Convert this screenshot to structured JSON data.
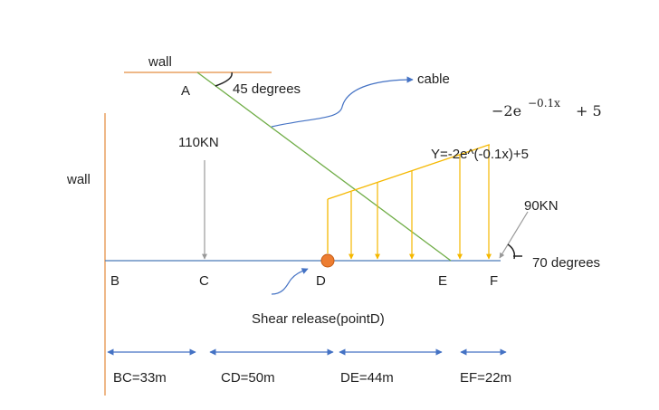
{
  "labels": {
    "wall_top": "wall",
    "wall_left": "wall",
    "point_a": "A",
    "point_b": "B",
    "point_c": "C",
    "point_d": "D",
    "point_e": "E",
    "point_f": "F",
    "angle_a": "45 degrees",
    "angle_f": "70 degrees",
    "cable": "cable",
    "load_c": "110KN",
    "load_f": "90KN",
    "load_eq": "Y=-2e^(-0.1x)+5",
    "shear_release": "Shear release(pointD)",
    "formula_main": "−2e",
    "formula_exp": "−0.1x",
    "formula_tail": "+ 5"
  },
  "dimensions": [
    {
      "label": "BC=33m"
    },
    {
      "label": "CD=50m"
    },
    {
      "label": "DE=44m"
    },
    {
      "label": "EF=22m"
    }
  ],
  "colors": {
    "wall": "#e8a060",
    "beam": "#4a7ab8",
    "cable": "#70ad47",
    "distributed_load": "#f5b800",
    "point_load": "#999999",
    "dimension_arrow": "#4472c4",
    "hinge_fill": "#ed7d31",
    "hinge_stroke": "#c55a11",
    "callout_arrow": "#4472c4"
  }
}
